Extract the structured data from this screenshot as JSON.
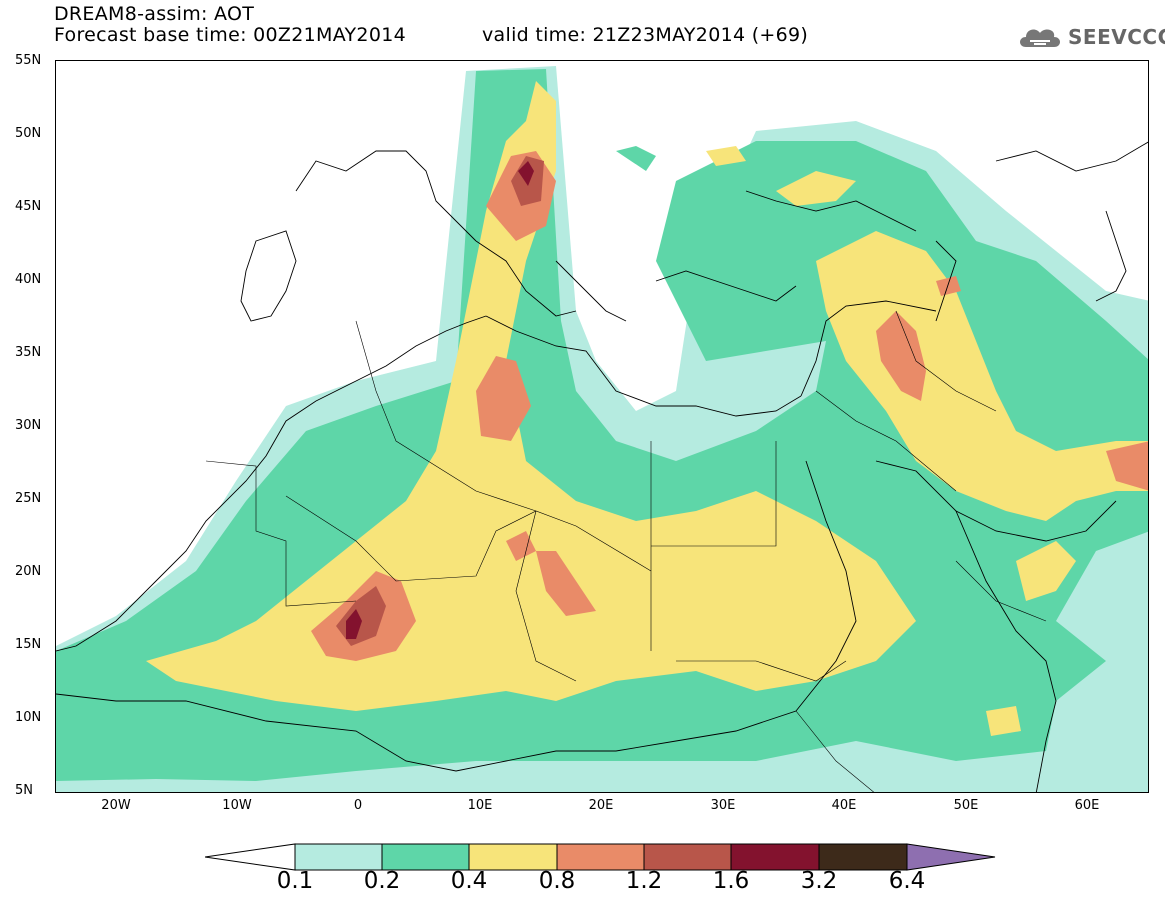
{
  "header": {
    "title_line1": "DREAM8-assim: AOT",
    "title_line2": "Forecast base time: 00Z21MAY2014",
    "valid_time": "valid time: 21Z23MAY2014 (+69)",
    "logo_text": "SEEVCCC"
  },
  "map": {
    "lat_labels": [
      "55N",
      "50N",
      "45N",
      "40N",
      "35N",
      "30N",
      "25N",
      "20N",
      "15N",
      "10N",
      "5N"
    ],
    "lon_labels": [
      "20W",
      "10W",
      "0",
      "10E",
      "20E",
      "30E",
      "40E",
      "50E",
      "60E"
    ],
    "lon_range": [
      -25,
      65
    ],
    "lat_range": [
      5,
      55
    ]
  },
  "colorbar": {
    "levels": [
      "0.1",
      "0.2",
      "0.4",
      "0.8",
      "1.2",
      "1.6",
      "3.2",
      "6.4"
    ],
    "colors": [
      "#ffffff",
      "#b5ebe0",
      "#5ed6a8",
      "#f7e47a",
      "#e98b68",
      "#b8564a",
      "#83122e",
      "#3d2a1a",
      "#8e6fb0"
    ]
  }
}
